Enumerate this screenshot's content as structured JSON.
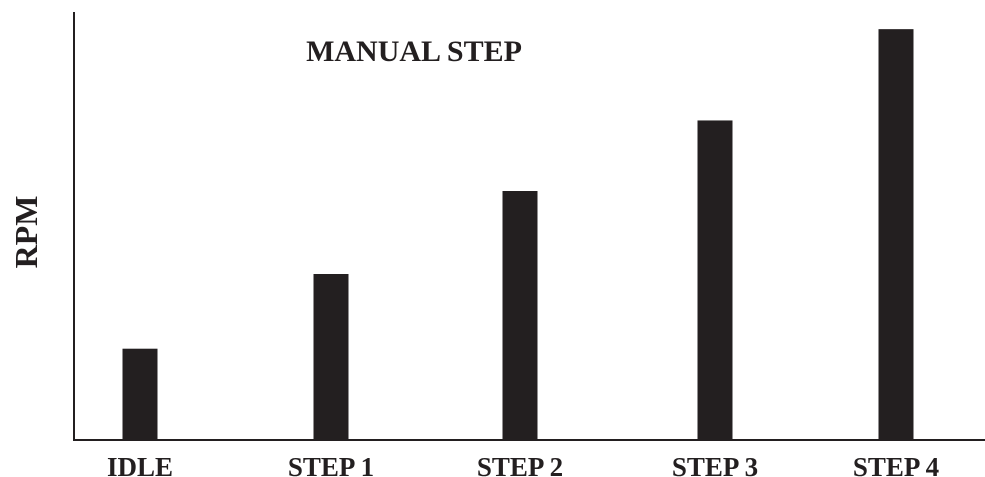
{
  "chart_data": {
    "type": "bar",
    "title": "MANUAL STEP",
    "xlabel": "",
    "ylabel": "RPM",
    "categories": [
      "IDLE",
      "STEP 1",
      "STEP 2",
      "STEP 3",
      "STEP 4"
    ],
    "values": [
      22,
      40,
      60,
      77,
      99
    ],
    "ylim": [
      0,
      100
    ],
    "grid": false,
    "y_ticks_shown": false,
    "bar_color": "#231f20",
    "axis_color": "#231f20",
    "text_color": "#231f20"
  }
}
